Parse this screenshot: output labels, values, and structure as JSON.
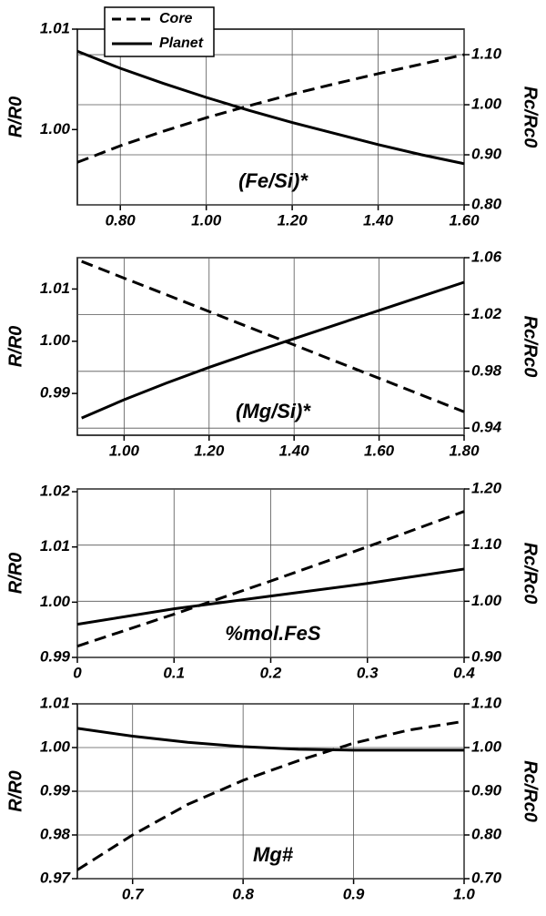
{
  "chart_data": [
    {
      "type": "line",
      "xlabel": "(Fe/Si)*",
      "ylabel": "R/R0",
      "y2label": "Rc/Rc0",
      "x": [
        0.7,
        0.8,
        0.9,
        1.0,
        1.1,
        1.2,
        1.3,
        1.4,
        1.5,
        1.6
      ],
      "xlim": [
        0.7,
        1.6
      ],
      "xticks": [
        {
          "value": 0.8,
          "label": "0.80"
        },
        {
          "value": 1.0,
          "label": "1.00"
        },
        {
          "value": 1.2,
          "label": "1.20"
        },
        {
          "value": 1.4,
          "label": "1.40"
        },
        {
          "value": 1.6,
          "label": "1.60"
        }
      ],
      "ylim": [
        0.9925,
        1.01
      ],
      "yticks": [
        {
          "value": 1.0,
          "label": "1.00"
        },
        1.01
      ],
      "y2lim": [
        0.8,
        1.151
      ],
      "y2ticks": [
        {
          "value": 0.8,
          "label": "0.80"
        },
        {
          "value": 0.9,
          "label": "0.90"
        },
        {
          "value": 1.0,
          "label": "1.00"
        },
        {
          "value": 1.1,
          "label": "1.10"
        }
      ],
      "grid": true,
      "legend": "top-left",
      "series": [
        {
          "name": "Core",
          "color": "#000000",
          "style": "dashed",
          "axis": "y2",
          "values": [
            0.885,
            0.918,
            0.947,
            0.974,
            0.998,
            1.021,
            1.042,
            1.062,
            1.081,
            1.1
          ]
        },
        {
          "name": "Planet",
          "color": "#000000",
          "style": "solid",
          "values": [
            1.0078,
            1.0061,
            1.0046,
            1.0032,
            1.0019,
            1.0007,
            0.9996,
            0.9985,
            0.9975,
            0.9966
          ]
        }
      ]
    },
    {
      "type": "line",
      "xlabel": "(Mg/Si)*",
      "ylabel": "R/R0",
      "y2label": "Rc/Rc0",
      "x": [
        0.9,
        1.0,
        1.1,
        1.2,
        1.3,
        1.4,
        1.5,
        1.6,
        1.7,
        1.8
      ],
      "xlim": [
        0.89,
        1.8
      ],
      "xticks": [
        {
          "value": 1.0,
          "label": "1.00"
        },
        {
          "value": 1.2,
          "label": "1.20"
        },
        {
          "value": 1.4,
          "label": "1.40"
        },
        {
          "value": 1.6,
          "label": "1.60"
        },
        {
          "value": 1.8,
          "label": "1.80"
        }
      ],
      "ylim": [
        0.982,
        1.016
      ],
      "yticks": [
        0.99,
        {
          "value": 1.0,
          "label": "1.00"
        },
        1.01
      ],
      "y2lim": [
        0.935,
        1.06
      ],
      "y2ticks": [
        0.94,
        0.98,
        1.02,
        1.06
      ],
      "grid": true,
      "series": [
        {
          "color": "#000000",
          "style": "dashed",
          "axis": "y2",
          "values": [
            1.0574,
            1.0456,
            1.0339,
            1.0221,
            1.0103,
            0.9986,
            0.9868,
            0.9751,
            0.9633,
            0.9515
          ]
        },
        {
          "color": "#000000",
          "style": "solid",
          "values": [
            0.9853,
            0.9888,
            0.992,
            0.995,
            0.9978,
            1.0005,
            1.0032,
            1.0059,
            1.0086,
            1.0113
          ]
        }
      ]
    },
    {
      "type": "line",
      "xlabel": "%mol.FeS",
      "ylabel": "R/R0",
      "y2label": "Rc/Rc0",
      "x": [
        0,
        0.1,
        0.2,
        0.3,
        0.4
      ],
      "xlim": [
        0,
        0.4
      ],
      "xticks": [
        0,
        0.1,
        0.2,
        0.3,
        0.4
      ],
      "ylim": [
        0.99,
        1.0205
      ],
      "yticks": [
        0.99,
        {
          "value": 1.0,
          "label": "1.00"
        },
        1.01,
        1.02
      ],
      "y2lim": [
        0.9,
        1.2
      ],
      "y2ticks": [
        {
          "value": 0.9,
          "label": "0.90"
        },
        {
          "value": 1.0,
          "label": "1.00"
        },
        {
          "value": 1.1,
          "label": "1.10"
        },
        {
          "value": 1.2,
          "label": "1.20"
        }
      ],
      "grid": true,
      "series": [
        {
          "color": "#000000",
          "style": "dashed",
          "axis": "y2",
          "values": [
            0.92,
            0.977,
            1.036,
            1.097,
            1.16
          ]
        },
        {
          "color": "#000000",
          "style": "solid",
          "values": [
            0.996,
            0.9988,
            1.0011,
            1.0034,
            1.006
          ]
        }
      ]
    },
    {
      "type": "line",
      "xlabel": "Mg#",
      "ylabel": "R/R0",
      "y2label": "Rc/Rc0",
      "x": [
        0.65,
        0.7,
        0.75,
        0.8,
        0.85,
        0.9,
        0.95,
        1.0
      ],
      "xlim": [
        0.65,
        1.0
      ],
      "xticks": [
        0.7,
        0.8,
        0.9,
        {
          "value": 1.0,
          "label": "1.0"
        }
      ],
      "ylim": [
        0.97,
        1.01
      ],
      "yticks": [
        0.97,
        0.98,
        0.99,
        {
          "value": 1.0,
          "label": "1.00"
        },
        1.01
      ],
      "y2lim": [
        0.7,
        1.1
      ],
      "y2ticks": [
        {
          "value": 0.7,
          "label": "0.70"
        },
        {
          "value": 0.8,
          "label": "0.80"
        },
        {
          "value": 0.9,
          "label": "0.90"
        },
        {
          "value": 1.0,
          "label": "1.00"
        },
        {
          "value": 1.1,
          "label": "1.10"
        }
      ],
      "grid": true,
      "series": [
        {
          "color": "#000000",
          "style": "dashed",
          "axis": "y2",
          "values": [
            0.72,
            0.8,
            0.87,
            0.925,
            0.97,
            1.01,
            1.04,
            1.06
          ]
        },
        {
          "color": "#000000",
          "style": "solid",
          "values": [
            1.0044,
            1.0026,
            1.0012,
            1.0002,
            0.9996,
            0.9994,
            0.9994,
            0.9994
          ]
        }
      ]
    }
  ]
}
